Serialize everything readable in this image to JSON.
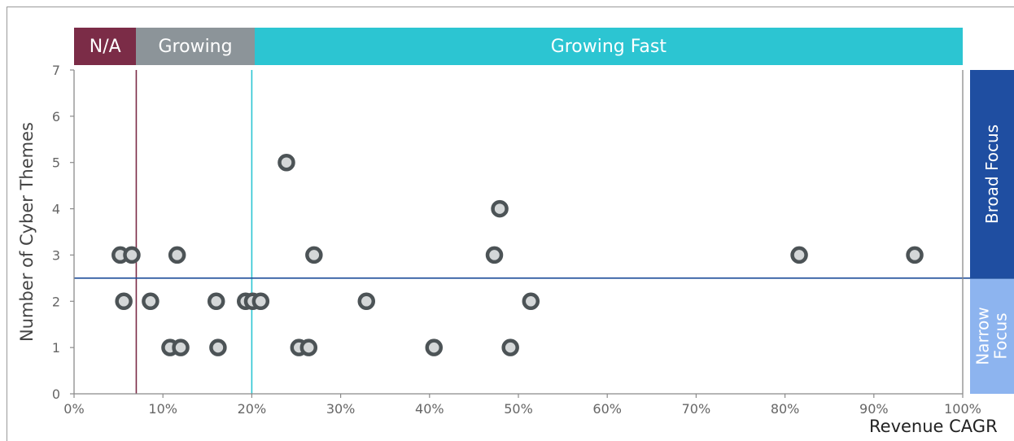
{
  "chart_data": {
    "type": "scatter",
    "title": "",
    "xlabel": "Revenue CAGR",
    "ylabel": "Number of Cyber Themes",
    "xlim": [
      0,
      100
    ],
    "ylim": [
      0,
      7
    ],
    "x_ticks": [
      "0%",
      "10%",
      "20%",
      "30%",
      "40%",
      "50%",
      "60%",
      "70%",
      "80%",
      "90%",
      "100%"
    ],
    "y_ticks": [
      "0",
      "1",
      "2",
      "3",
      "4",
      "5",
      "6",
      "7"
    ],
    "grid": false,
    "points": [
      {
        "x": 5.2,
        "y": 3
      },
      {
        "x": 6.5,
        "y": 3
      },
      {
        "x": 5.6,
        "y": 2
      },
      {
        "x": 8.6,
        "y": 2
      },
      {
        "x": 11.6,
        "y": 3
      },
      {
        "x": 10.8,
        "y": 1
      },
      {
        "x": 12.0,
        "y": 1
      },
      {
        "x": 16.0,
        "y": 2
      },
      {
        "x": 16.2,
        "y": 1
      },
      {
        "x": 19.3,
        "y": 2
      },
      {
        "x": 20.1,
        "y": 2
      },
      {
        "x": 21.0,
        "y": 2
      },
      {
        "x": 23.9,
        "y": 5
      },
      {
        "x": 25.3,
        "y": 1
      },
      {
        "x": 26.4,
        "y": 1
      },
      {
        "x": 27.0,
        "y": 3
      },
      {
        "x": 32.9,
        "y": 2
      },
      {
        "x": 40.5,
        "y": 1
      },
      {
        "x": 47.3,
        "y": 3
      },
      {
        "x": 47.9,
        "y": 4
      },
      {
        "x": 49.1,
        "y": 1
      },
      {
        "x": 51.4,
        "y": 2
      },
      {
        "x": 81.6,
        "y": 3
      },
      {
        "x": 94.6,
        "y": 3
      }
    ],
    "reference_lines": [
      {
        "axis": "x",
        "value": 7,
        "color": "#7b2c47"
      },
      {
        "axis": "x",
        "value": 20,
        "color": "#2cc5d2"
      },
      {
        "axis": "y",
        "value": 2.5,
        "color": "#1f4e9a"
      }
    ],
    "x_bands": [
      {
        "label": "N/A",
        "from": 0,
        "to": 7,
        "color": "#7b2c47"
      },
      {
        "label": "Growing",
        "from": 7,
        "to": 20.3,
        "color": "#8c9499"
      },
      {
        "label": "Growing Fast",
        "from": 20.3,
        "to": 100,
        "color": "#2cc5d2"
      }
    ],
    "y_bands": [
      {
        "label": "Broad Focus",
        "from": 2.5,
        "to": 7,
        "color": "#1f4ea1"
      },
      {
        "label": "Narrow Focus",
        "from": 0,
        "to": 2.5,
        "color": "#8db4ef"
      }
    ],
    "colors": {
      "marker_fill": "#d4d7d8",
      "marker_edge": "#4c5356",
      "axis": "#8a8a8a",
      "tick_text": "#666666"
    }
  }
}
